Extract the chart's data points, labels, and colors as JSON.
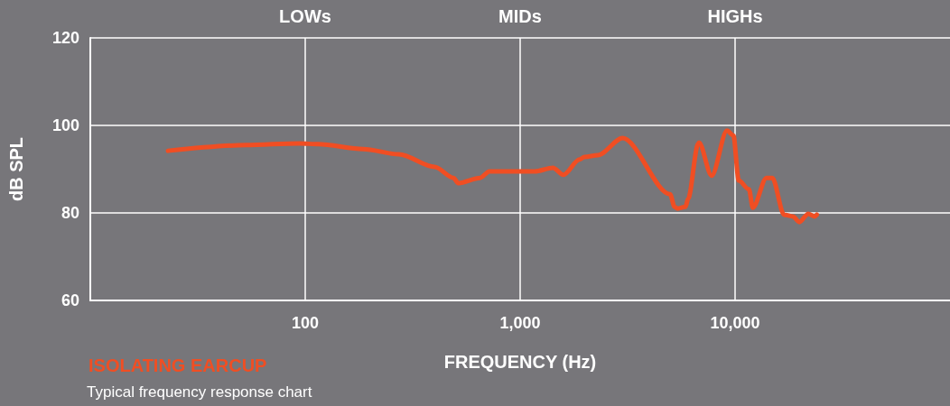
{
  "chart_data": {
    "type": "line",
    "xlabel": "FREQUENCY (Hz)",
    "ylabel": "dB SPL",
    "annotations": [
      "LOWs",
      "MIDs",
      "HIGHs",
      "Typical frequency response chart"
    ],
    "log": "x",
    "xlim": [
      10,
      100000
    ],
    "xticks": [
      {
        "value": 100,
        "label": "100"
      },
      {
        "value": 1000,
        "label": "1,000"
      },
      {
        "value": 10000,
        "label": "10,000"
      }
    ],
    "ylim": [
      60,
      120
    ],
    "yticks": [
      60,
      80,
      100,
      120
    ],
    "grid": true,
    "legend": "bottom left",
    "marker": "none",
    "line_style": "solid",
    "series": [
      {
        "name": "ISOLATING EARCUP",
        "color": "#f04e23",
        "x": [
          23,
          53,
          94,
          115,
          186,
          273,
          400,
          490,
          515,
          650,
          720,
          1170,
          1420,
          1590,
          1890,
          1990,
          2300,
          3000,
          4980,
          5230,
          5400,
          5880,
          6050,
          6730,
          6790,
          7780,
          9170,
          9820,
          10400,
          11600,
          12100,
          14000,
          14900,
          16900,
          18600,
          19900,
          21900,
          23400,
          24000
        ],
        "values": [
          94.2,
          95.5,
          95.9,
          95.7,
          94.6,
          93.4,
          90.5,
          88,
          86.8,
          88,
          89.5,
          89.5,
          90.3,
          88.7,
          92.2,
          92.8,
          93.2,
          97.1,
          84.3,
          81.4,
          81,
          81.4,
          83.3,
          95.7,
          96.1,
          88.5,
          98.8,
          97.7,
          87.4,
          85.4,
          81.2,
          88,
          88,
          79.6,
          79.2,
          77.9,
          79.8,
          79.2,
          79.6
        ]
      }
    ]
  }
}
